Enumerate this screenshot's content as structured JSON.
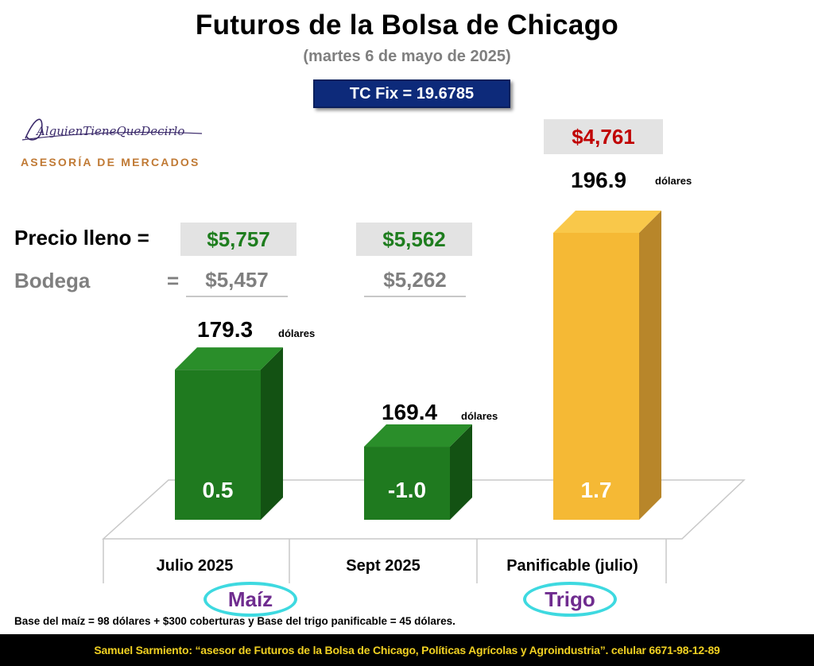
{
  "header": {
    "title": "Futuros de la Bolsa de Chicago",
    "subtitle": "(martes 6 de mayo de 2025)",
    "tc_fix": "TC Fix = 19.6785"
  },
  "logo": {
    "signature": "AlguienTieneQueDecirlo",
    "tagline": "ASESORÍA DE MERCADOS"
  },
  "prices": {
    "lleno_label": "Precio lleno =",
    "bodega_label": "Bodega",
    "bodega_eq": "=",
    "julio_lleno": "$5,757",
    "sept_lleno": "$5,562",
    "julio_bodega": "$5,457",
    "sept_bodega": "$5,262",
    "trigo_price": "$4,761"
  },
  "colors": {
    "maiz_front": "#1f7a1f",
    "maiz_top": "#2a8e2a",
    "maiz_side": "#135213",
    "trigo_front": "#f5b935",
    "trigo_top": "#f9c84a",
    "trigo_side": "#b8862a",
    "price_green": "#1e7d1e",
    "price_red": "#c00000",
    "oval": "#3ed9e0",
    "crop_label": "#6f2c8f"
  },
  "chart_data": {
    "type": "bar",
    "categories": [
      "Julio 2025",
      "Sept 2025",
      "Panificable (julio)"
    ],
    "values": [
      179.3,
      169.4,
      196.9
    ],
    "value_labels": [
      "179.3",
      "169.4",
      "196.9"
    ],
    "value_unit": "dólares",
    "changes": [
      "0.5",
      "-1.0",
      "1.7"
    ],
    "groups": [
      "Maíz",
      "Trigo"
    ]
  },
  "notes": {
    "footnote": "Base del maíz = 98 dólares + $300 coberturas y Base del trigo panificable = 45 dólares.",
    "footer_name": "Samuel Sarmiento:",
    "footer_text": " “asesor de Futuros de la Bolsa de Chicago, Políticas Agrícolas y Agroindustria”. celular 6671-98-12-89"
  }
}
